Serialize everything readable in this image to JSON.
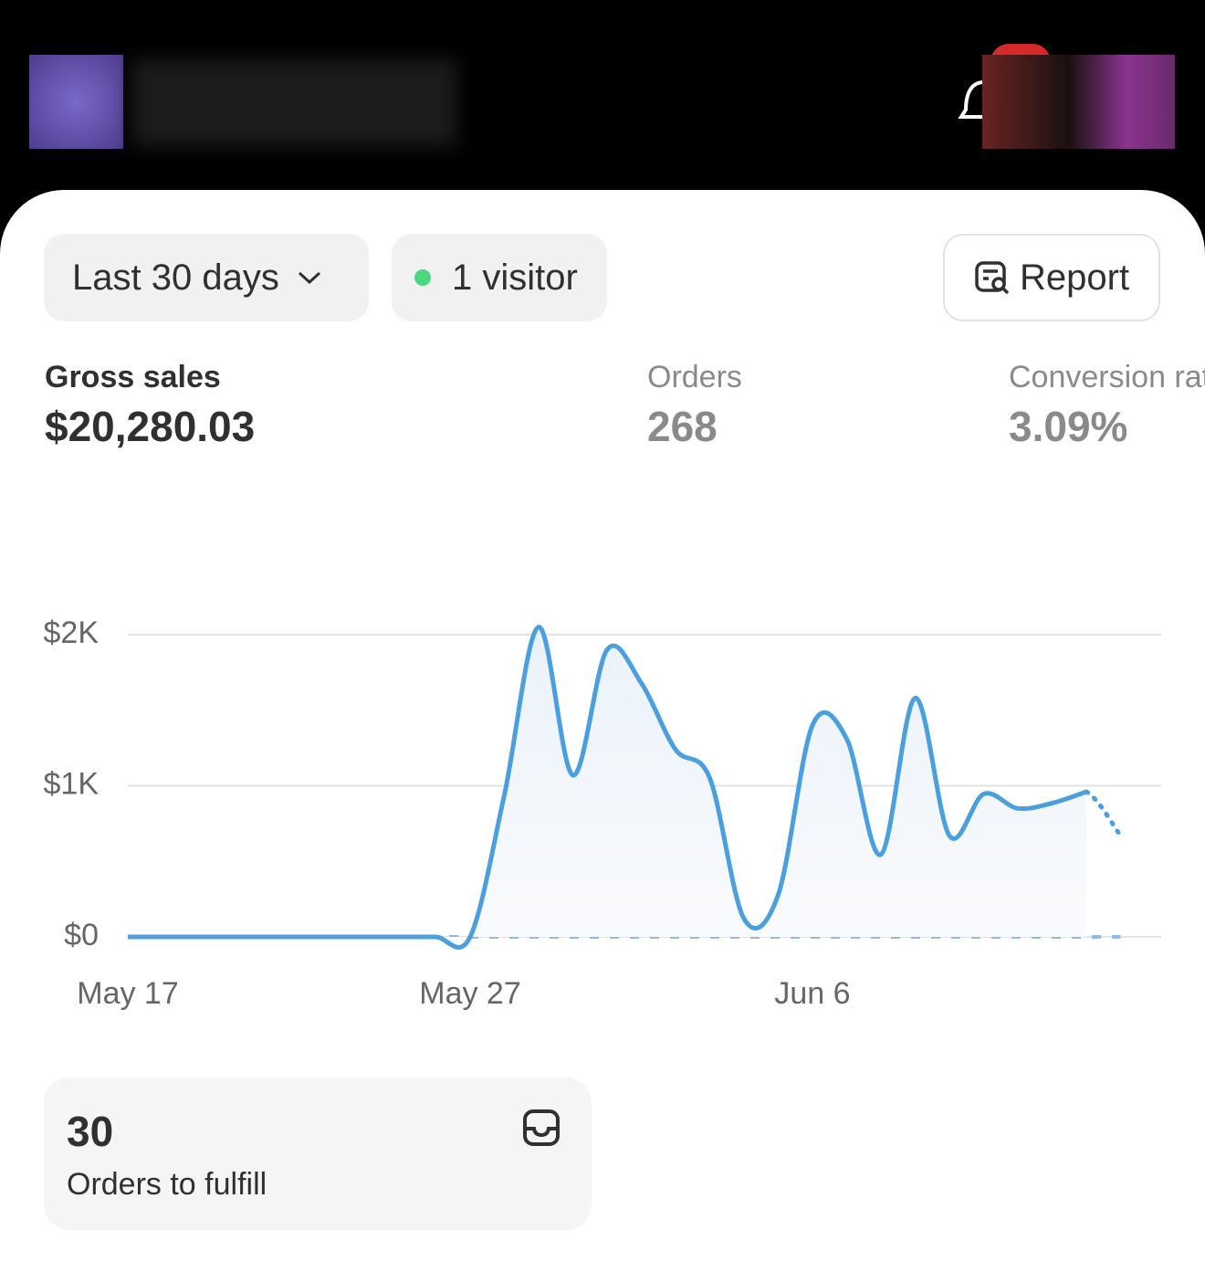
{
  "filters": {
    "date_range": "Last 30 days",
    "visitors": "1 visitor",
    "report": "Report"
  },
  "metrics": [
    {
      "label": "Gross sales",
      "value": "$20,280.03"
    },
    {
      "label": "Orders",
      "value": "268"
    },
    {
      "label": "Conversion rate",
      "value": "3.09%"
    }
  ],
  "chart_data": {
    "type": "line",
    "categories": [
      "May 17",
      null,
      null,
      null,
      null,
      null,
      null,
      null,
      null,
      null,
      "May 27",
      null,
      null,
      null,
      null,
      null,
      null,
      null,
      null,
      null,
      "Jun 6",
      null,
      null,
      null,
      null,
      null,
      null,
      null,
      null,
      null
    ],
    "series": [
      {
        "color": "#4a9fe0",
        "values": [
          0,
          0,
          0,
          0,
          0,
          0,
          0,
          0,
          0,
          0,
          0,
          940,
          2050,
          1070,
          1900,
          1680,
          1240,
          1050,
          120,
          280,
          1400,
          1310,
          545,
          1580,
          670,
          945,
          850,
          885,
          960,
          670
        ]
      },
      {
        "color": "#8bbde6",
        "dashed": true,
        "values": [
          0,
          0,
          0,
          0,
          0,
          0,
          0,
          0,
          0,
          0,
          0,
          0,
          0,
          0,
          0,
          0,
          0,
          0,
          0,
          0,
          0,
          0,
          0,
          0,
          0,
          0,
          0,
          0,
          0,
          0
        ]
      }
    ],
    "ylim": [
      0,
      2000
    ],
    "yticks": [
      {
        "value": 0,
        "label": "$0"
      },
      {
        "value": 1000,
        "label": "$1K"
      },
      {
        "value": 2000,
        "label": "$2K"
      }
    ],
    "grid": true
  },
  "tasks": [
    {
      "count": "30",
      "label": "Orders to fulfill"
    }
  ]
}
